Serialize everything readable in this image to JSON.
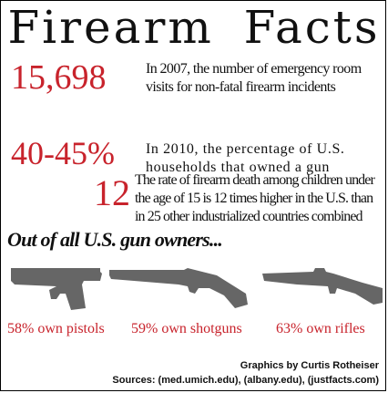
{
  "title": "Firearm Facts",
  "facts": [
    {
      "stat": "15,698",
      "line1": "In 2007, the number of emergency room",
      "line2": "visits for non-fatal firearm incidents"
    },
    {
      "stat": "40-45%",
      "line1": "In 2010, the percentage of U.S.",
      "line2": "households that owned a gun"
    },
    {
      "stat": "12",
      "line1": "The rate of firearm death among children under",
      "line2": "the age of 15 is 12 times higher in the U.S. than",
      "line3": "in 25 other industrialized countries combined"
    }
  ],
  "subhead": "Out of all U.S. gun owners...",
  "ownership": [
    {
      "label": "58% own pistols",
      "icon": "pistol-icon",
      "percent": 58
    },
    {
      "label": "59% own shotguns",
      "icon": "shotgun-icon",
      "percent": 59
    },
    {
      "label": "63% own rifles",
      "icon": "rifle-icon",
      "percent": 63
    }
  ],
  "credits": {
    "byline": "Graphics by Curtis Rotheiser",
    "sources": "Sources: (med.umich.edu), (albany.edu), (justfacts.com)"
  },
  "colors": {
    "accent": "#c8232c",
    "text": "#111111",
    "silhouette": "#666666"
  }
}
